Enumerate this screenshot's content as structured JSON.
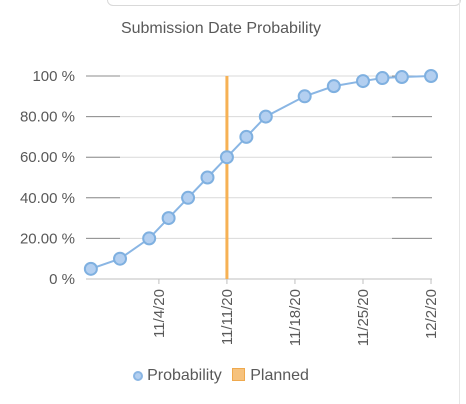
{
  "chart_data": {
    "type": "line",
    "title": "Submission Date Probability",
    "xlabel": "",
    "ylabel": "",
    "x_tick_labels": [
      "11/4/20",
      "11/11/20",
      "11/18/20",
      "11/25/20",
      "12/2/20"
    ],
    "y_tick_labels": [
      "0 %",
      "20.00 %",
      "40.00 %",
      "60.00 %",
      "80.00 %",
      "100 %"
    ],
    "ylim": [
      0,
      100
    ],
    "grid": true,
    "legend_position": "bottom",
    "series": [
      {
        "name": "Probability",
        "type": "line",
        "color": "#8ab6e4",
        "points": [
          {
            "x": "10/28/20",
            "y": 5
          },
          {
            "x": "10/31/20",
            "y": 10
          },
          {
            "x": "11/3/20",
            "y": 20
          },
          {
            "x": "11/5/20",
            "y": 30
          },
          {
            "x": "11/7/20",
            "y": 40
          },
          {
            "x": "11/9/20",
            "y": 50
          },
          {
            "x": "11/11/20",
            "y": 60
          },
          {
            "x": "11/13/20",
            "y": 70
          },
          {
            "x": "11/15/20",
            "y": 80
          },
          {
            "x": "11/19/20",
            "y": 90
          },
          {
            "x": "11/22/20",
            "y": 95
          },
          {
            "x": "11/25/20",
            "y": 97.5
          },
          {
            "x": "11/27/20",
            "y": 99
          },
          {
            "x": "11/29/20",
            "y": 99.5
          },
          {
            "x": "12/2/20",
            "y": 100
          }
        ]
      },
      {
        "name": "Planned",
        "type": "vertical-line",
        "color": "#f6b154",
        "x": "11/11/20"
      }
    ]
  },
  "legend": {
    "probability_label": "Probability",
    "planned_label": "Planned"
  }
}
